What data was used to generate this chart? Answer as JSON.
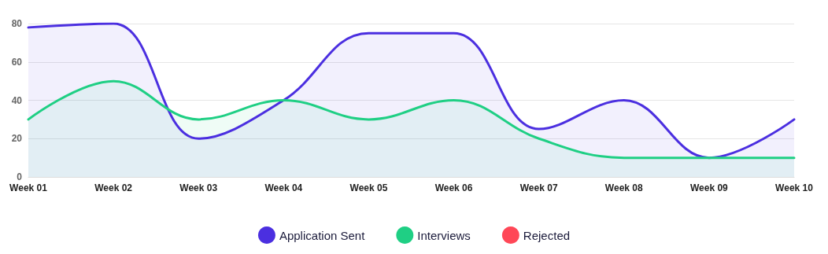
{
  "chart_data": {
    "type": "area",
    "categories": [
      "Week 01",
      "Week 02",
      "Week 03",
      "Week 04",
      "Week 05",
      "Week 06",
      "Week 07",
      "Week 08",
      "Week 09",
      "Week 10"
    ],
    "series": [
      {
        "name": "Application Sent",
        "color": "#4b2fe0",
        "values": [
          78,
          80,
          20,
          40,
          75,
          75,
          25,
          40,
          10,
          30
        ]
      },
      {
        "name": "Interviews",
        "color": "#1fcf84",
        "values": [
          30,
          50,
          30,
          40,
          30,
          40,
          20,
          10,
          10,
          10
        ]
      },
      {
        "name": "Rejected",
        "color": "#ff4757",
        "values": [
          null,
          null,
          null,
          null,
          null,
          null,
          null,
          null,
          null,
          null
        ]
      }
    ],
    "ylim": [
      0,
      80
    ],
    "yticks": [
      0,
      20,
      40,
      60,
      80
    ],
    "grid": "y",
    "legend": "bottom",
    "marker": "none",
    "line_style": "solid"
  }
}
